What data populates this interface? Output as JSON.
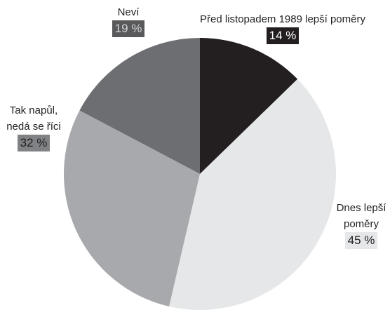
{
  "chart_data": {
    "type": "pie",
    "categories": [
      "Před listopadem 1989 lepší poměry",
      "Dnes lepší poměry",
      "Tak napůl, nedá se říci",
      "Neví"
    ],
    "values": [
      14,
      45,
      32,
      19
    ],
    "value_labels": [
      "14 %",
      "45 %",
      "32 %",
      "19 %"
    ],
    "colors": [
      "#231f20",
      "#e6e7e8",
      "#a7a9ac",
      "#6d6e71"
    ]
  }
}
